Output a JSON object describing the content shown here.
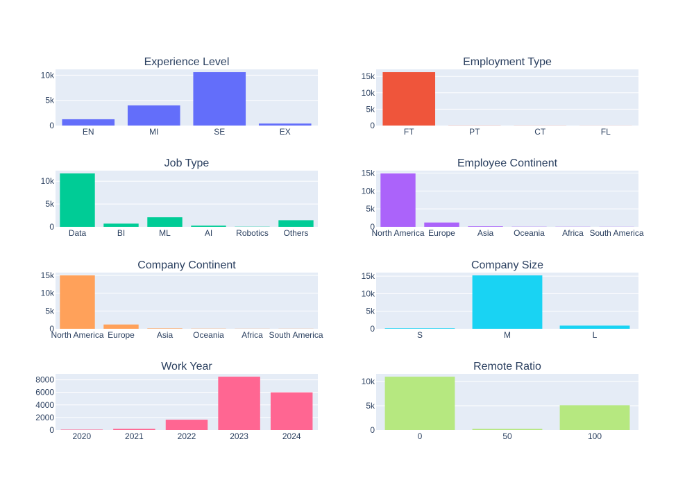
{
  "chart_data": [
    {
      "type": "bar",
      "title": "Experience Level",
      "categories": [
        "EN",
        "MI",
        "SE",
        "EX"
      ],
      "values": [
        1250,
        4000,
        10600,
        400
      ],
      "ylim": [
        0,
        11158
      ],
      "yticks": [
        0,
        5000,
        10000
      ],
      "ytick_labels": [
        "0",
        "5k",
        "10k"
      ],
      "color": "#636efa"
    },
    {
      "type": "bar",
      "title": "Employment Type",
      "categories": [
        "FT",
        "PT",
        "CT",
        "FL"
      ],
      "values": [
        16300,
        40,
        30,
        20
      ],
      "ylim": [
        0,
        17158
      ],
      "yticks": [
        0,
        5000,
        10000,
        15000
      ],
      "ytick_labels": [
        "0",
        "5k",
        "10k",
        "15k"
      ],
      "color": "#ef553b"
    },
    {
      "type": "bar",
      "title": "Job Type",
      "categories": [
        "Data",
        "BI",
        "ML",
        "AI",
        "Robotics",
        "Others"
      ],
      "values": [
        11700,
        700,
        2100,
        250,
        40,
        1450
      ],
      "ylim": [
        0,
        12316
      ],
      "yticks": [
        0,
        5000,
        10000
      ],
      "ytick_labels": [
        "0",
        "5k",
        "10k"
      ],
      "color": "#00cc96"
    },
    {
      "type": "bar",
      "title": "Employee Continent",
      "categories": [
        "North America",
        "Europe",
        "Asia",
        "Oceania",
        "Africa",
        "South America"
      ],
      "values": [
        14900,
        1200,
        150,
        50,
        40,
        30
      ],
      "ylim": [
        0,
        15684
      ],
      "yticks": [
        0,
        5000,
        10000,
        15000
      ],
      "ytick_labels": [
        "0",
        "5k",
        "10k",
        "15k"
      ],
      "color": "#ab63fa"
    },
    {
      "type": "bar",
      "title": "Company Continent",
      "categories": [
        "North America",
        "Europe",
        "Asia",
        "Oceania",
        "Africa",
        "South America"
      ],
      "values": [
        15000,
        1200,
        120,
        50,
        30,
        30
      ],
      "ylim": [
        0,
        15789
      ],
      "yticks": [
        0,
        5000,
        10000,
        15000
      ],
      "ytick_labels": [
        "0",
        "5k",
        "10k",
        "15k"
      ],
      "color": "#ffa15a"
    },
    {
      "type": "bar",
      "title": "Company Size",
      "categories": [
        "S",
        "M",
        "L"
      ],
      "values": [
        150,
        15200,
        900
      ],
      "ylim": [
        0,
        16000
      ],
      "yticks": [
        0,
        5000,
        10000,
        15000
      ],
      "ytick_labels": [
        "0",
        "5k",
        "10k",
        "15k"
      ],
      "color": "#19d3f3"
    },
    {
      "type": "bar",
      "title": "Work Year",
      "categories": [
        "2020",
        "2021",
        "2022",
        "2023",
        "2024"
      ],
      "values": [
        70,
        200,
        1650,
        8500,
        6000
      ],
      "ylim": [
        0,
        8947
      ],
      "yticks": [
        0,
        2000,
        4000,
        6000,
        8000
      ],
      "ytick_labels": [
        "0",
        "2000",
        "4000",
        "6000",
        "8000"
      ],
      "color": "#ff6692"
    },
    {
      "type": "bar",
      "title": "Remote Ratio",
      "categories": [
        "0",
        "50",
        "100"
      ],
      "values": [
        11000,
        250,
        5100
      ],
      "ylim": [
        0,
        11579
      ],
      "yticks": [
        0,
        5000,
        10000
      ],
      "ytick_labels": [
        "0",
        "5k",
        "10k"
      ],
      "color": "#b6e880"
    }
  ],
  "style": {
    "plot_bg": "#e5ecf6",
    "grid_color": "#ffffff",
    "text_color": "#2a3f5f"
  }
}
